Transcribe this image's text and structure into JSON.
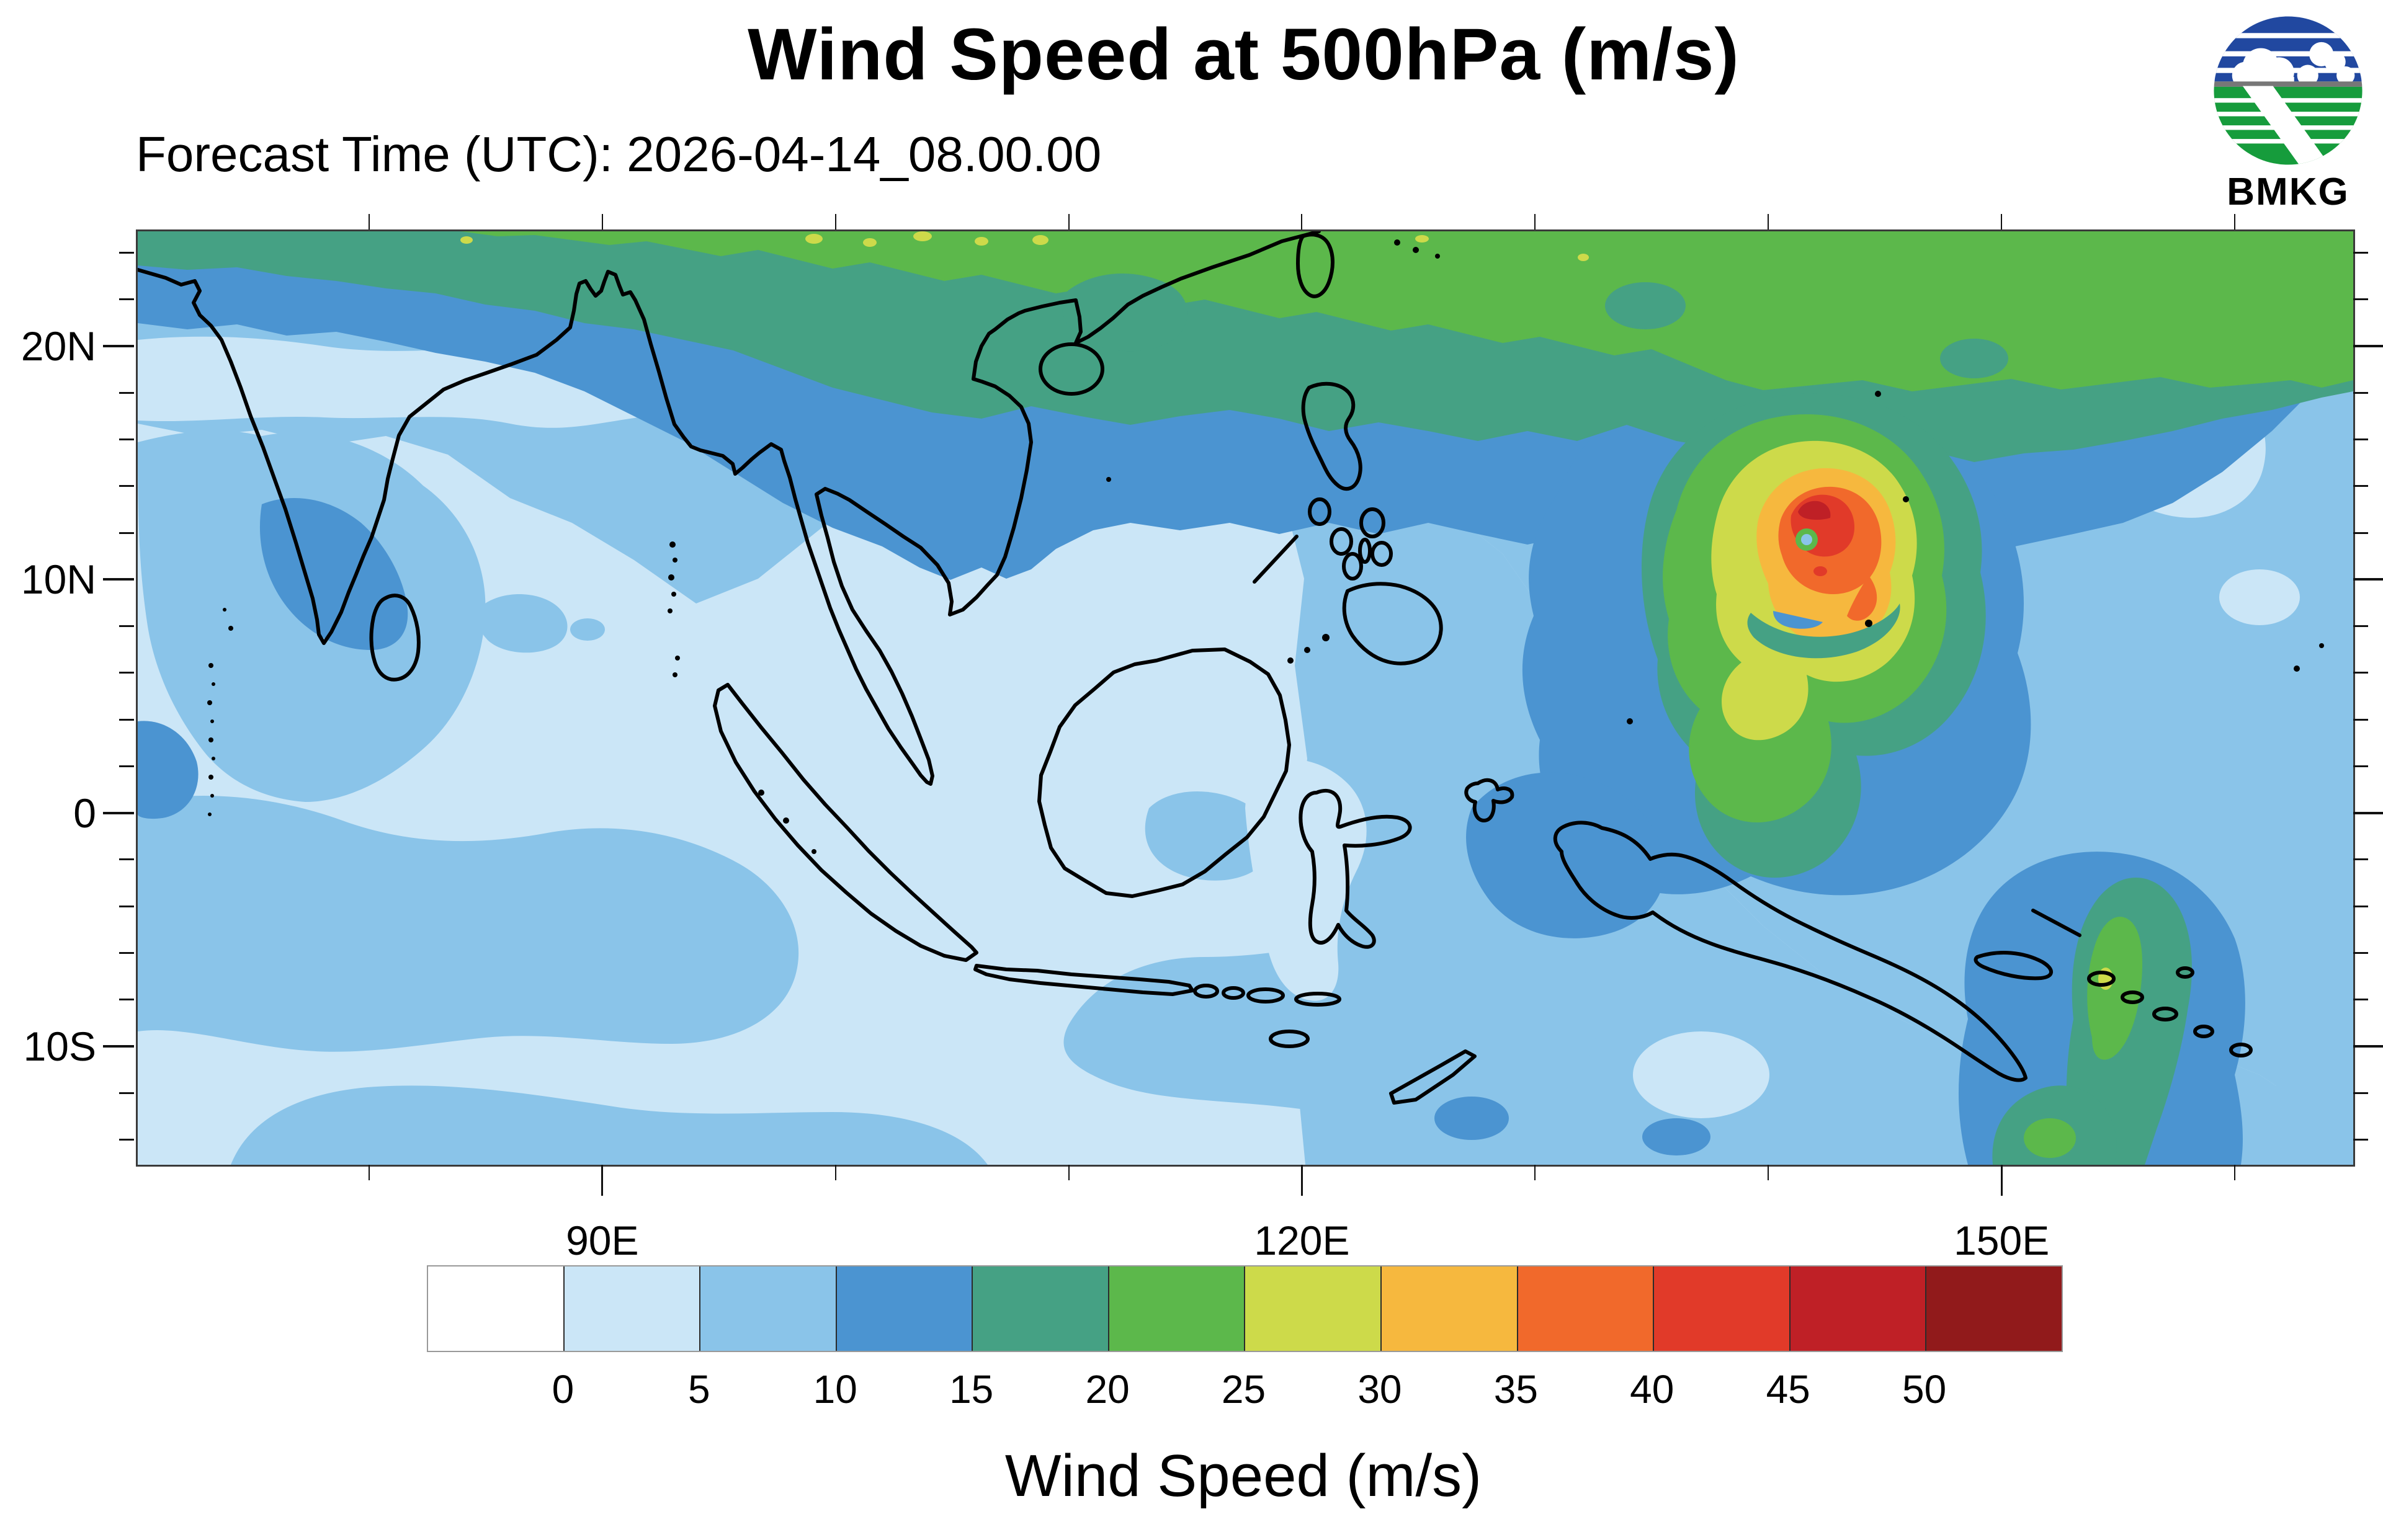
{
  "title": "Wind Speed at 500hPa (m/s)",
  "subtitle": "Forecast Time (UTC): 2026-04-14_08.00.00",
  "logo": {
    "label": "BMKG"
  },
  "map": {
    "lat_labels": [
      {
        "text": "20N",
        "deg": 20
      },
      {
        "text": "10N",
        "deg": 10
      },
      {
        "text": "0",
        "deg": 0
      },
      {
        "text": "10S",
        "deg": -10
      }
    ],
    "lon_labels": [
      {
        "text": "90E",
        "deg": 90
      },
      {
        "text": "120E",
        "deg": 120
      },
      {
        "text": "150E",
        "deg": 150
      }
    ]
  },
  "colorbar": {
    "title": "Wind Speed (m/s)",
    "tick_labels": [
      "0",
      "5",
      "10",
      "15",
      "20",
      "25",
      "30",
      "35",
      "40",
      "45",
      "50"
    ],
    "colors": [
      "#ffffff",
      "#cbe6f7",
      "#8ac4e9",
      "#4b94d1",
      "#45a184",
      "#5cb84b",
      "#cdda4a",
      "#f6b83e",
      "#f1692b",
      "#e13a29",
      "#bf2026",
      "#911a1b"
    ]
  },
  "chart_data": {
    "type": "heatmap",
    "title": "Wind Speed at 500hPa (m/s)",
    "forecast_time_utc": "2026-04-14_08.00.00",
    "units": "m/s",
    "colorbar_levels": [
      0,
      5,
      10,
      15,
      20,
      25,
      30,
      35,
      40,
      45,
      50
    ],
    "colorbar_colors": [
      "#ffffff",
      "#cbe6f7",
      "#8ac4e9",
      "#4b94d1",
      "#45a184",
      "#5cb84b",
      "#cdda4a",
      "#f6b83e",
      "#f1692b",
      "#e13a29",
      "#bf2026",
      "#911a1b"
    ],
    "lon_axis": {
      "range_deg_east": [
        70,
        165
      ],
      "tick_interval_deg": 10,
      "labeled_ticks": [
        "90E",
        "120E",
        "150E"
      ]
    },
    "lat_axis": {
      "range_deg_north": [
        -15,
        25
      ],
      "minor_tick_interval_deg": 2,
      "major_tick_interval_deg": 10,
      "labeled_ticks": [
        "20N",
        "10N",
        "0",
        "10S"
      ]
    },
    "legend_position": "bottom",
    "grid": false,
    "features": [
      {
        "name": "tropical-cyclone-wind-maximum",
        "approx_lon_deg_east": 141.5,
        "approx_lat_deg_north": 12.0,
        "peak_band_m_s": "45-50",
        "structure": "concentric rings 15-50 m/s with calm eye"
      },
      {
        "name": "northern-jet-band",
        "description": "zonal band of 15-30 m/s along 20N-25N across entire domain, strongest (25-30 m/s) near top edge"
      },
      {
        "name": "southeast-band",
        "description": "10-20 m/s region over far southeast (Solomon Islands area) with small 20-25 m/s cores"
      },
      {
        "name": "background-field",
        "description": "0-10 m/s over most of the tropics (Indonesia, Indian Ocean, South China Sea)"
      }
    ]
  }
}
